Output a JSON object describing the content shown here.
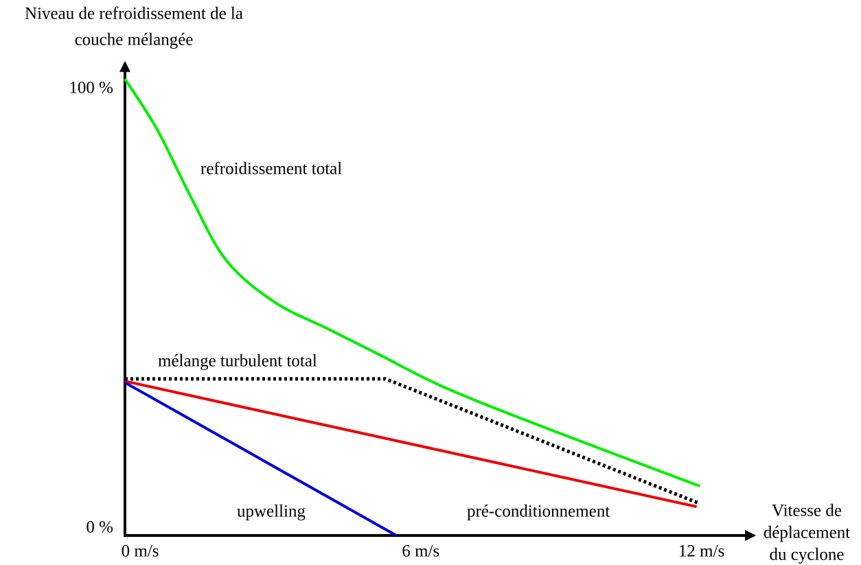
{
  "chart_data": {
    "type": "line",
    "y_label": [
      "Niveau de refroidissement de la",
      "couche mélangée"
    ],
    "x_label": [
      "Vitesse de",
      "déplacement",
      "du cyclone"
    ],
    "xlim": [
      0,
      13.4
    ],
    "ylim": [
      0,
      103
    ],
    "xticks": [
      {
        "value": 0,
        "label": "0 m/s"
      },
      {
        "value": 6,
        "label": "6 m/s"
      },
      {
        "value": 12,
        "label": "12 m/s"
      }
    ],
    "yticks": [
      {
        "value": 0,
        "label": "0 %"
      },
      {
        "value": 100,
        "label": "100 %"
      }
    ],
    "grid": false,
    "series": [
      {
        "name": "refroidissement total",
        "color": "#00ee00",
        "smooth": true,
        "x": [
          0,
          0.7,
          1.43,
          2.17,
          3.2,
          4.37,
          5.4,
          6.86,
          9.06,
          12.29
        ],
        "values": [
          100,
          88.7,
          73.7,
          60.2,
          51.1,
          45.1,
          39.8,
          32.3,
          23.3,
          10.8
        ]
      },
      {
        "name": "mélange turbulent total",
        "color": "#000000",
        "dash": "dotted",
        "x": [
          0,
          5.57,
          12.26
        ],
        "values": [
          34.3,
          34.3,
          7.1
        ]
      },
      {
        "name": "pré-conditionnement",
        "color": "#ee0000",
        "x": [
          0,
          12.22
        ],
        "values": [
          33.8,
          6.3
        ]
      },
      {
        "name": "upwelling",
        "color": "#0000dd",
        "x": [
          0,
          5.8
        ],
        "values": [
          33.5,
          0
        ]
      }
    ]
  }
}
